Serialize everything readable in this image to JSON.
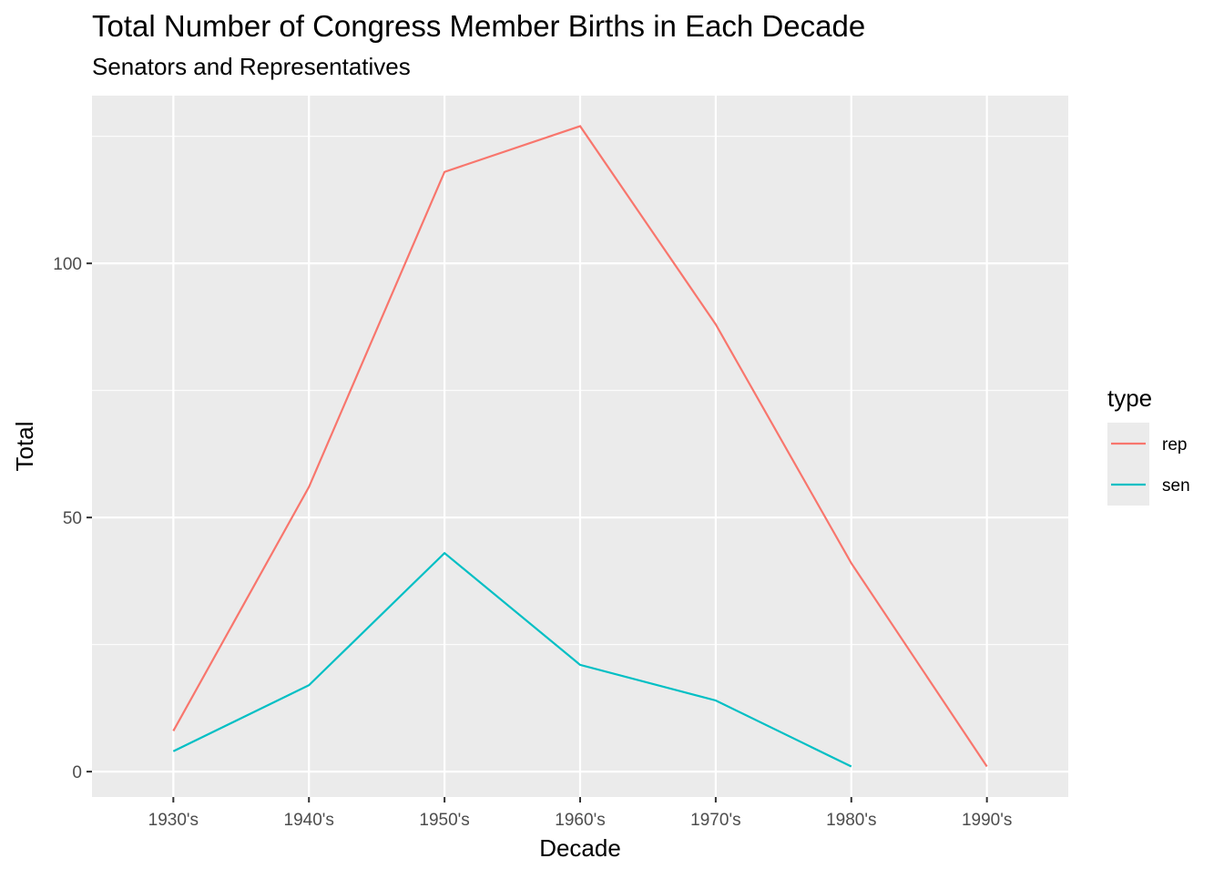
{
  "chart_data": {
    "type": "line",
    "title": "Total Number of Congress Member Births in Each Decade",
    "subtitle": "Senators and Representatives",
    "xlabel": "Decade",
    "ylabel": "Total",
    "categories": [
      "1930's",
      "1940's",
      "1950's",
      "1960's",
      "1970's",
      "1980's",
      "1990's"
    ],
    "ylim": [
      -5,
      133
    ],
    "yticks": [
      0,
      50,
      100
    ],
    "grid": true,
    "legend": {
      "title": "type",
      "position": "right"
    },
    "series": [
      {
        "name": "rep",
        "color": "#F8766D",
        "values": [
          8,
          56,
          118,
          127,
          88,
          41,
          1
        ]
      },
      {
        "name": "sen",
        "color": "#00BFC4",
        "values": [
          4,
          17,
          43,
          21,
          14,
          1,
          null
        ]
      }
    ]
  }
}
